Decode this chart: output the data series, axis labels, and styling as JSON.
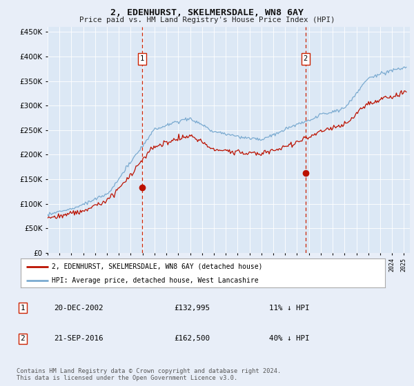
{
  "title": "2, EDENHURST, SKELMERSDALE, WN8 6AY",
  "subtitle": "Price paid vs. HM Land Registry's House Price Index (HPI)",
  "background_color": "#e8eef8",
  "plot_bg_color": "#dce8f5",
  "ylim": [
    0,
    460000
  ],
  "yticks": [
    0,
    50000,
    100000,
    150000,
    200000,
    250000,
    300000,
    350000,
    400000,
    450000
  ],
  "sale1_price": 132995,
  "sale1_x": 2002.97,
  "sale2_price": 162500,
  "sale2_x": 2016.72,
  "legend_line1": "2, EDENHURST, SKELMERSDALE, WN8 6AY (detached house)",
  "legend_line2": "HPI: Average price, detached house, West Lancashire",
  "footer": "Contains HM Land Registry data © Crown copyright and database right 2024.\nThis data is licensed under the Open Government Licence v3.0.",
  "hpi_color": "#7aaad0",
  "price_color": "#bb1100",
  "vline_color": "#cc2200",
  "row1": [
    "1",
    "20-DEC-2002",
    "£132,995",
    "11% ↓ HPI"
  ],
  "row2": [
    "2",
    "21-SEP-2016",
    "£162,500",
    "40% ↓ HPI"
  ]
}
